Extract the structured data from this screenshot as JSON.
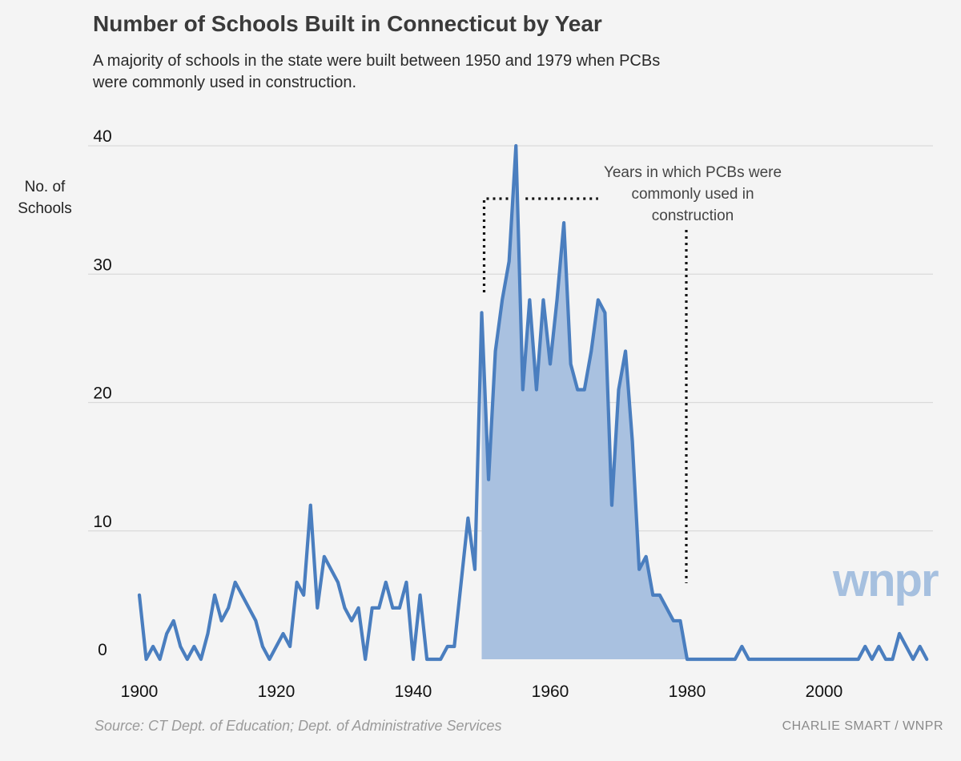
{
  "header": {
    "title": "Number of Schools Built in Connecticut by Year",
    "subtitle": "A majority of schools in the state were built between 1950 and 1979 when PCBs were commonly used in construction."
  },
  "footer": {
    "source": "Source: CT Dept. of Education; Dept. of Administrative Services",
    "credit": "CHARLIE SMART / WNPR"
  },
  "logo_text": "wnpr",
  "colors": {
    "line": "#4a7ebf",
    "fill": "#a9c1e0",
    "grid": "#dadada",
    "background": "#f4f4f4",
    "logo": "#a6c0df"
  },
  "chart_data": {
    "type": "area",
    "title": "Number of Schools Built in Connecticut by Year",
    "subtitle": "A majority of schools in the state were built between 1950 and 1979 when PCBs were commonly used in construction.",
    "xlabel": "",
    "ylabel": "No. of Schools",
    "xlim": [
      1900,
      2016
    ],
    "ylim": [
      0,
      40
    ],
    "x_ticks": [
      1900,
      1920,
      1940,
      1960,
      1980,
      2000
    ],
    "y_ticks": [
      0,
      10,
      20,
      30,
      40
    ],
    "grid": true,
    "highlight": {
      "from": 1950,
      "to": 1980,
      "label": "Years in which PCBs were commonly used in construction"
    },
    "series": [
      {
        "x": [
          1900,
          1901,
          1902,
          1903,
          1904,
          1905,
          1906,
          1907,
          1908,
          1909,
          1910,
          1911,
          1912,
          1913,
          1914,
          1915,
          1916,
          1917,
          1918,
          1919,
          1920,
          1921,
          1922,
          1923,
          1924,
          1925,
          1926,
          1927,
          1928,
          1929,
          1930,
          1931,
          1932,
          1933,
          1934,
          1935,
          1936,
          1937,
          1938,
          1939,
          1940,
          1941,
          1942,
          1943,
          1944,
          1945,
          1946,
          1947,
          1948,
          1949,
          1950,
          1951,
          1952,
          1953,
          1954,
          1955,
          1956,
          1957,
          1958,
          1959,
          1960,
          1961,
          1962,
          1963,
          1964,
          1965,
          1966,
          1967,
          1968,
          1969,
          1970,
          1971,
          1972,
          1973,
          1974,
          1975,
          1976,
          1977,
          1978,
          1979,
          1980,
          1981,
          1982,
          1983,
          1984,
          1985,
          1986,
          1987,
          1988,
          1989,
          1990,
          1991,
          1992,
          1993,
          1994,
          1995,
          1996,
          1997,
          1998,
          1999,
          2000,
          2001,
          2002,
          2003,
          2004,
          2005,
          2006,
          2007,
          2008,
          2009,
          2010,
          2011,
          2012,
          2013,
          2014,
          2015
        ],
        "values": [
          5,
          0,
          1,
          0,
          2,
          3,
          1,
          0,
          1,
          0,
          2,
          5,
          3,
          4,
          6,
          5,
          4,
          3,
          1,
          0,
          1,
          2,
          1,
          6,
          5,
          12,
          4,
          8,
          7,
          6,
          4,
          3,
          4,
          0,
          4,
          4,
          6,
          4,
          4,
          6,
          0,
          5,
          0,
          0,
          0,
          1,
          1,
          6,
          11,
          7,
          27,
          14,
          24,
          28,
          31,
          40,
          21,
          28,
          21,
          28,
          23,
          28,
          34,
          23,
          21,
          21,
          24,
          28,
          27,
          12,
          21,
          24,
          17,
          7,
          8,
          5,
          5,
          4,
          3,
          3,
          0,
          0,
          0,
          0,
          0,
          0,
          0,
          0,
          1,
          0,
          0,
          0,
          0,
          0,
          0,
          0,
          0,
          0,
          0,
          0,
          0,
          0,
          0,
          0,
          0,
          0,
          1,
          0,
          1,
          0,
          0,
          2,
          1,
          0,
          1,
          0
        ]
      }
    ]
  }
}
